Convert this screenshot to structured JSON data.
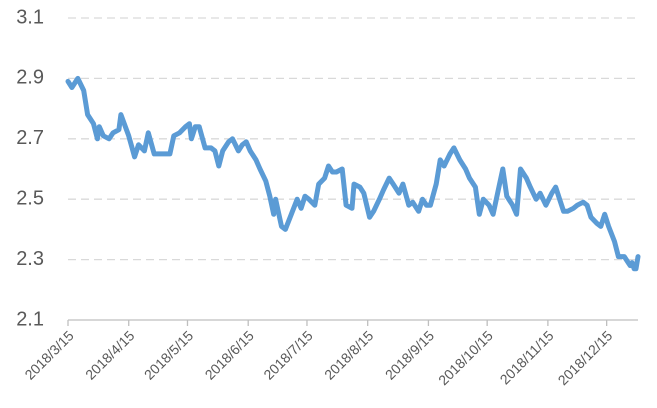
{
  "chart_data": {
    "type": "line",
    "x": [
      "2018/3/15",
      "2018/3/17",
      "2018/3/20",
      "2018/3/23",
      "2018/3/25",
      "2018/3/28",
      "2018/3/30",
      "2018/3/31",
      "2018/4/2",
      "2018/4/5",
      "2018/4/7",
      "2018/4/10",
      "2018/4/11",
      "2018/4/15",
      "2018/4/18",
      "2018/4/20",
      "2018/4/23",
      "2018/4/25",
      "2018/4/28",
      "2018/5/1",
      "2018/5/3",
      "2018/5/6",
      "2018/5/8",
      "2018/5/11",
      "2018/5/14",
      "2018/5/16",
      "2018/5/17",
      "2018/5/19",
      "2018/5/21",
      "2018/5/24",
      "2018/5/27",
      "2018/5/29",
      "2018/5/31",
      "2018/6/2",
      "2018/6/5",
      "2018/6/7",
      "2018/6/10",
      "2018/6/12",
      "2018/6/14",
      "2018/6/16",
      "2018/6/19",
      "2018/6/21",
      "2018/6/24",
      "2018/6/26",
      "2018/6/28",
      "2018/6/29",
      "2018/7/2",
      "2018/7/4",
      "2018/7/7",
      "2018/7/10",
      "2018/7/12",
      "2018/7/14",
      "2018/7/16",
      "2018/7/19",
      "2018/7/21",
      "2018/7/24",
      "2018/7/26",
      "2018/7/28",
      "2018/7/30",
      "2018/8/2",
      "2018/8/4",
      "2018/8/7",
      "2018/8/8",
      "2018/8/11",
      "2018/8/13",
      "2018/8/16",
      "2018/8/18",
      "2018/8/21",
      "2018/8/23",
      "2018/8/26",
      "2018/8/28",
      "2018/8/31",
      "2018/9/2",
      "2018/9/5",
      "2018/9/7",
      "2018/9/10",
      "2018/9/12",
      "2018/9/14",
      "2018/9/16",
      "2018/9/19",
      "2018/9/21",
      "2018/9/23",
      "2018/9/26",
      "2018/9/28",
      "2018/10/1",
      "2018/10/4",
      "2018/10/6",
      "2018/10/9",
      "2018/10/11",
      "2018/10/13",
      "2018/10/16",
      "2018/10/18",
      "2018/10/21",
      "2018/10/23",
      "2018/10/25",
      "2018/10/28",
      "2018/10/30",
      "2018/11/1",
      "2018/11/4",
      "2018/11/6",
      "2018/11/9",
      "2018/11/11",
      "2018/11/14",
      "2018/11/17",
      "2018/11/19",
      "2018/11/21",
      "2018/11/23",
      "2018/11/25",
      "2018/11/28",
      "2018/11/30",
      "2018/12/3",
      "2018/12/5",
      "2018/12/7",
      "2018/12/10",
      "2018/12/12",
      "2018/12/14",
      "2018/12/16",
      "2018/12/19",
      "2018/12/21",
      "2018/12/24",
      "2018/12/26",
      "2018/12/27",
      "2018/12/28",
      "2018/12/29",
      "2018/12/30",
      "2018/12/31"
    ],
    "series": [
      {
        "color": "#5b9bd5",
        "values": [
          2.89,
          2.87,
          2.9,
          2.86,
          2.78,
          2.75,
          2.7,
          2.74,
          2.71,
          2.7,
          2.72,
          2.73,
          2.78,
          2.71,
          2.64,
          2.68,
          2.66,
          2.72,
          2.65,
          2.65,
          2.65,
          2.65,
          2.71,
          2.72,
          2.74,
          2.75,
          2.7,
          2.74,
          2.74,
          2.67,
          2.67,
          2.66,
          2.61,
          2.66,
          2.69,
          2.7,
          2.66,
          2.68,
          2.69,
          2.66,
          2.63,
          2.6,
          2.56,
          2.51,
          2.45,
          2.5,
          2.41,
          2.4,
          2.45,
          2.5,
          2.47,
          2.51,
          2.5,
          2.48,
          2.55,
          2.57,
          2.61,
          2.59,
          2.59,
          2.6,
          2.48,
          2.47,
          2.55,
          2.54,
          2.52,
          2.44,
          2.46,
          2.5,
          2.53,
          2.57,
          2.55,
          2.52,
          2.55,
          2.48,
          2.49,
          2.46,
          2.5,
          2.48,
          2.48,
          2.55,
          2.63,
          2.61,
          2.65,
          2.67,
          2.63,
          2.6,
          2.57,
          2.54,
          2.45,
          2.5,
          2.48,
          2.45,
          2.54,
          2.6,
          2.51,
          2.48,
          2.45,
          2.6,
          2.57,
          2.54,
          2.5,
          2.52,
          2.48,
          2.52,
          2.54,
          2.5,
          2.46,
          2.46,
          2.47,
          2.48,
          2.49,
          2.48,
          2.44,
          2.42,
          2.41,
          2.45,
          2.41,
          2.36,
          2.31,
          2.31,
          2.29,
          2.28,
          2.29,
          2.27,
          2.27,
          2.31
        ]
      }
    ],
    "xlim": [
      "2018/3/15",
      "2018/12/31"
    ],
    "xticks": [
      "2018/3/15",
      "2018/4/15",
      "2018/5/15",
      "2018/6/15",
      "2018/7/15",
      "2018/8/15",
      "2018/9/15",
      "2018/10/15",
      "2018/11/15",
      "2018/12/15"
    ],
    "ylim": [
      2.1,
      3.1
    ],
    "yticks": [
      2.1,
      2.3,
      2.5,
      2.7,
      2.9,
      3.1
    ],
    "grid": true
  }
}
